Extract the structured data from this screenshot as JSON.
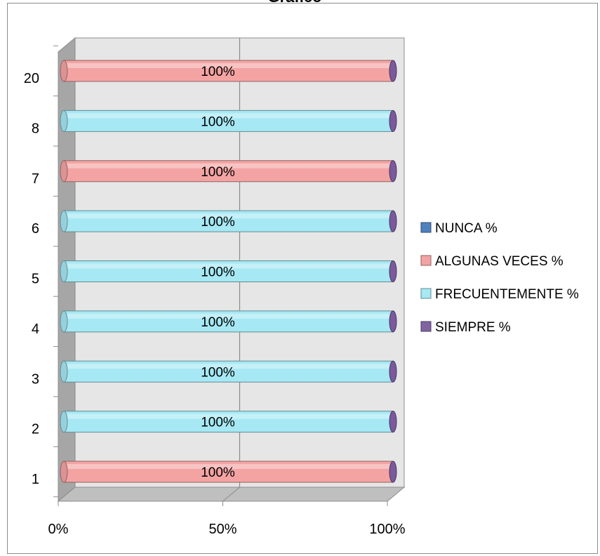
{
  "chart_data": {
    "type": "bar",
    "orientation": "horizontal",
    "stacked": "100%",
    "title": "Grafico",
    "categories": [
      "1",
      "2",
      "3",
      "4",
      "5",
      "6",
      "7",
      "8",
      "20"
    ],
    "series": [
      {
        "name": "NUNCA %",
        "color": "#4f81bd",
        "values": [
          0,
          0,
          0,
          0,
          0,
          0,
          0,
          0,
          0
        ]
      },
      {
        "name": "ALGUNAS VECES %",
        "color": "#f4a3a3",
        "values": [
          100,
          0,
          0,
          0,
          0,
          0,
          100,
          0,
          100
        ]
      },
      {
        "name": "FRECUENTEMENTE %",
        "color": "#a6e8f4",
        "values": [
          0,
          100,
          100,
          100,
          100,
          100,
          0,
          100,
          0
        ]
      },
      {
        "name": "SIEMPRE %",
        "color": "#8064a2",
        "values": [
          0,
          0,
          0,
          0,
          0,
          0,
          0,
          0,
          0
        ]
      }
    ],
    "data_labels": [
      "100%",
      "100%",
      "100%",
      "100%",
      "100%",
      "100%",
      "100%",
      "100%",
      "100%"
    ],
    "x_ticks": [
      "0%",
      "50%",
      "100%"
    ],
    "xlim": [
      0,
      100
    ],
    "grid": true,
    "legend_position": "right"
  }
}
